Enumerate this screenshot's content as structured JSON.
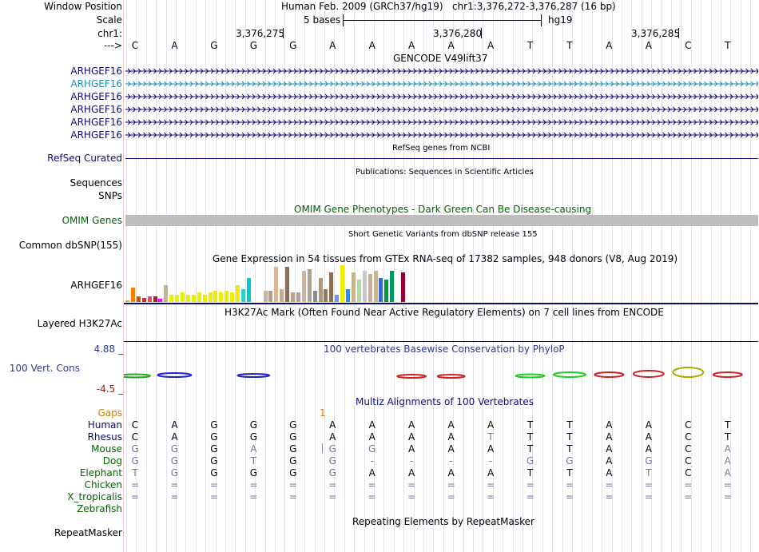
{
  "header": {
    "window_position_label": "Window Position",
    "window_position_text": "Human Feb. 2009 (GRCh37/hg19)   chr1:3,376,272-3,376,287 (16 bp)",
    "scale_label": "Scale",
    "scale_text": "5 bases",
    "scale_assembly": "hg19",
    "chrom_label": "chr1:",
    "strand_label": "--->",
    "coords": [
      "3,376,275",
      "3,376,280",
      "3,376,285"
    ]
  },
  "sequence": [
    "C",
    "A",
    "G",
    "G",
    "G",
    "A",
    "A",
    "A",
    "A",
    "A",
    "T",
    "T",
    "A",
    "A",
    "C",
    "T"
  ],
  "gencode": {
    "title": "GENCODE V49lift37",
    "genes": [
      {
        "name": "ARHGEF16",
        "color": "#0c0c78"
      },
      {
        "name": "ARHGEF16",
        "color": "#1e8cb4"
      },
      {
        "name": "ARHGEF16",
        "color": "#0c0c78"
      },
      {
        "name": "ARHGEF16",
        "color": "#0c0c78"
      },
      {
        "name": "ARHGEF16",
        "color": "#0c0c78"
      },
      {
        "name": "ARHGEF16",
        "color": "#0c0c78"
      }
    ]
  },
  "refseq": {
    "title": "RefSeq genes from NCBI",
    "label": "RefSeq Curated"
  },
  "publications": {
    "title": "Publications: Sequences in Scientific Articles",
    "label1": "Sequences",
    "label2": "SNPs"
  },
  "omim": {
    "title": "OMIM Gene Phenotypes - Dark Green Can Be Disease-causing",
    "label": "OMIM Genes"
  },
  "dbsnp": {
    "title": "Short Genetic Variants from dbSNP release 155",
    "label": "Common dbSNP(155)"
  },
  "gtex": {
    "title": "Gene Expression in 54 tissues from GTEx RNA-seq of 17382 samples, 948 donors (V8, Aug 2019)",
    "label": "ARHGEF16",
    "bars": [
      {
        "v": 0.05,
        "c": "#ffaa00"
      },
      {
        "v": 0.4,
        "c": "#ff7f00"
      },
      {
        "v": 0.15,
        "c": "#cc5500"
      },
      {
        "v": 0.1,
        "c": "#d12c2c"
      },
      {
        "v": 0.15,
        "c": "#eb5050"
      },
      {
        "v": 0.15,
        "c": "#a02030"
      },
      {
        "v": 0.08,
        "c": "#ff00ff"
      },
      {
        "v": 0.45,
        "c": "#c8b48c"
      },
      {
        "v": 0.2,
        "c": "#eeee00"
      },
      {
        "v": 0.2,
        "c": "#eeee00"
      },
      {
        "v": 0.25,
        "c": "#eeee00"
      },
      {
        "v": 0.2,
        "c": "#eeee00"
      },
      {
        "v": 0.2,
        "c": "#eeee00"
      },
      {
        "v": 0.25,
        "c": "#eeee00"
      },
      {
        "v": 0.2,
        "c": "#eeee00"
      },
      {
        "v": 0.25,
        "c": "#eeee00"
      },
      {
        "v": 0.3,
        "c": "#eeee00"
      },
      {
        "v": 0.25,
        "c": "#eeee00"
      },
      {
        "v": 0.3,
        "c": "#eeee00"
      },
      {
        "v": 0.25,
        "c": "#eeee00"
      },
      {
        "v": 0.45,
        "c": "#eeee00"
      },
      {
        "v": 0.35,
        "c": "#33cccc"
      },
      {
        "v": 0.65,
        "c": "#00cccc"
      },
      {
        "v": 0.0,
        "c": "#ffffff"
      },
      {
        "v": 0.0,
        "c": "#ffffff"
      },
      {
        "v": 0.3,
        "c": "#c8b4a0"
      },
      {
        "v": 0.3,
        "c": "#b4a08c"
      },
      {
        "v": 0.95,
        "c": "#e6b482"
      },
      {
        "v": 0.35,
        "c": "#c8aa8c"
      },
      {
        "v": 0.95,
        "c": "#8c6e50"
      },
      {
        "v": 0.25,
        "c": "#bea08c"
      },
      {
        "v": 0.25,
        "c": "#b4a096"
      },
      {
        "v": 0.85,
        "c": "#c8b4a0"
      },
      {
        "v": 0.9,
        "c": "#b4a08c"
      },
      {
        "v": 0.3,
        "c": "#8c8c8c"
      },
      {
        "v": 0.65,
        "c": "#b49678"
      },
      {
        "v": 0.35,
        "c": "#9c7a58"
      },
      {
        "v": 0.8,
        "c": "#8c6e50"
      },
      {
        "v": 0.2,
        "c": "#6699ff"
      },
      {
        "v": 1.0,
        "c": "#eeee00"
      },
      {
        "v": 0.35,
        "c": "#1e90ff"
      },
      {
        "v": 0.8,
        "c": "#c8b48c"
      },
      {
        "v": 0.6,
        "c": "#aadd99"
      },
      {
        "v": 0.85,
        "c": "#c8c8c8"
      },
      {
        "v": 0.75,
        "c": "#ccaa99"
      },
      {
        "v": 0.85,
        "c": "#c8b48c"
      },
      {
        "v": 0.65,
        "c": "#3366cc"
      },
      {
        "v": 0.6,
        "c": "#009933"
      },
      {
        "v": 0.85,
        "c": "#009966"
      },
      {
        "v": 0.1,
        "c": "#ffffff"
      },
      {
        "v": 0.8,
        "c": "#990033"
      },
      {
        "v": 0.0,
        "c": "#ffffff"
      },
      {
        "v": 0.0,
        "c": "#ffffff"
      },
      {
        "v": 0.0,
        "c": "#ffffff"
      }
    ]
  },
  "h3k27ac": {
    "title": "H3K27Ac Mark (Often Found Near Active Regulatory Elements) on 7 cell lines from ENCODE",
    "label": "Layered H3K27Ac"
  },
  "phylop": {
    "title": "100 vertebrates Basewise Conservation by PhyloP",
    "label": "100 Vert. Cons",
    "max": "4.88 _",
    "min": "-4.5 _"
  },
  "multiz": {
    "title": "Multiz Alignments of 100 Vertebrates",
    "gaps_label": "Gaps",
    "gaps_value": "1",
    "species": [
      {
        "name": "Human",
        "color": "#0c0c78",
        "row": [
          "C",
          "A",
          "G",
          "G",
          "G",
          "A",
          "A",
          "A",
          "A",
          "A",
          "T",
          "T",
          "A",
          "A",
          "C",
          "T"
        ]
      },
      {
        "name": "Rhesus",
        "color": "#0c0c78",
        "row": [
          "C",
          "A",
          "G",
          "G",
          "G",
          "A",
          "A",
          "A",
          "A",
          "T",
          "T",
          "T",
          "A",
          "A",
          "C",
          "T"
        ]
      },
      {
        "name": "Mouse",
        "color": "#006400",
        "row": [
          "G",
          "G",
          "G",
          "A",
          "G",
          "G",
          "G",
          "A",
          "A",
          "A",
          "T",
          "T",
          "A",
          "A",
          "C",
          "A"
        ]
      },
      {
        "name": "Dog",
        "color": "#006400",
        "row": [
          "G",
          "G",
          "G",
          "T",
          "G",
          "G",
          "-",
          "-",
          "-",
          "-",
          "G",
          "G",
          "A",
          "G",
          "C",
          "A"
        ]
      },
      {
        "name": "Elephant",
        "color": "#006400",
        "row": [
          "T",
          "G",
          "G",
          "G",
          "G",
          "G",
          "A",
          "A",
          "A",
          "A",
          "T",
          "T",
          "A",
          "T",
          "C",
          "A"
        ]
      },
      {
        "name": "Chicken",
        "color": "#006400",
        "row": [
          "=",
          "=",
          "=",
          "=",
          "=",
          "=",
          "=",
          "=",
          "=",
          "=",
          "=",
          "=",
          "=",
          "=",
          "=",
          "="
        ]
      },
      {
        "name": "X_tropicalis",
        "color": "#006400",
        "row": [
          "=",
          "=",
          "=",
          "=",
          "=",
          "=",
          "=",
          "=",
          "=",
          "=",
          "=",
          "=",
          "=",
          "=",
          "=",
          "="
        ]
      },
      {
        "name": "Zebrafish",
        "color": "#006400",
        "row": [
          "",
          "",
          "",
          "",
          "",
          "",
          "",
          "",
          "",
          "",
          "",
          "",
          "",
          "",
          "",
          ""
        ]
      }
    ]
  },
  "repeatmasker": {
    "title": "Repeating Elements by RepeatMasker",
    "label": "RepeatMasker"
  }
}
